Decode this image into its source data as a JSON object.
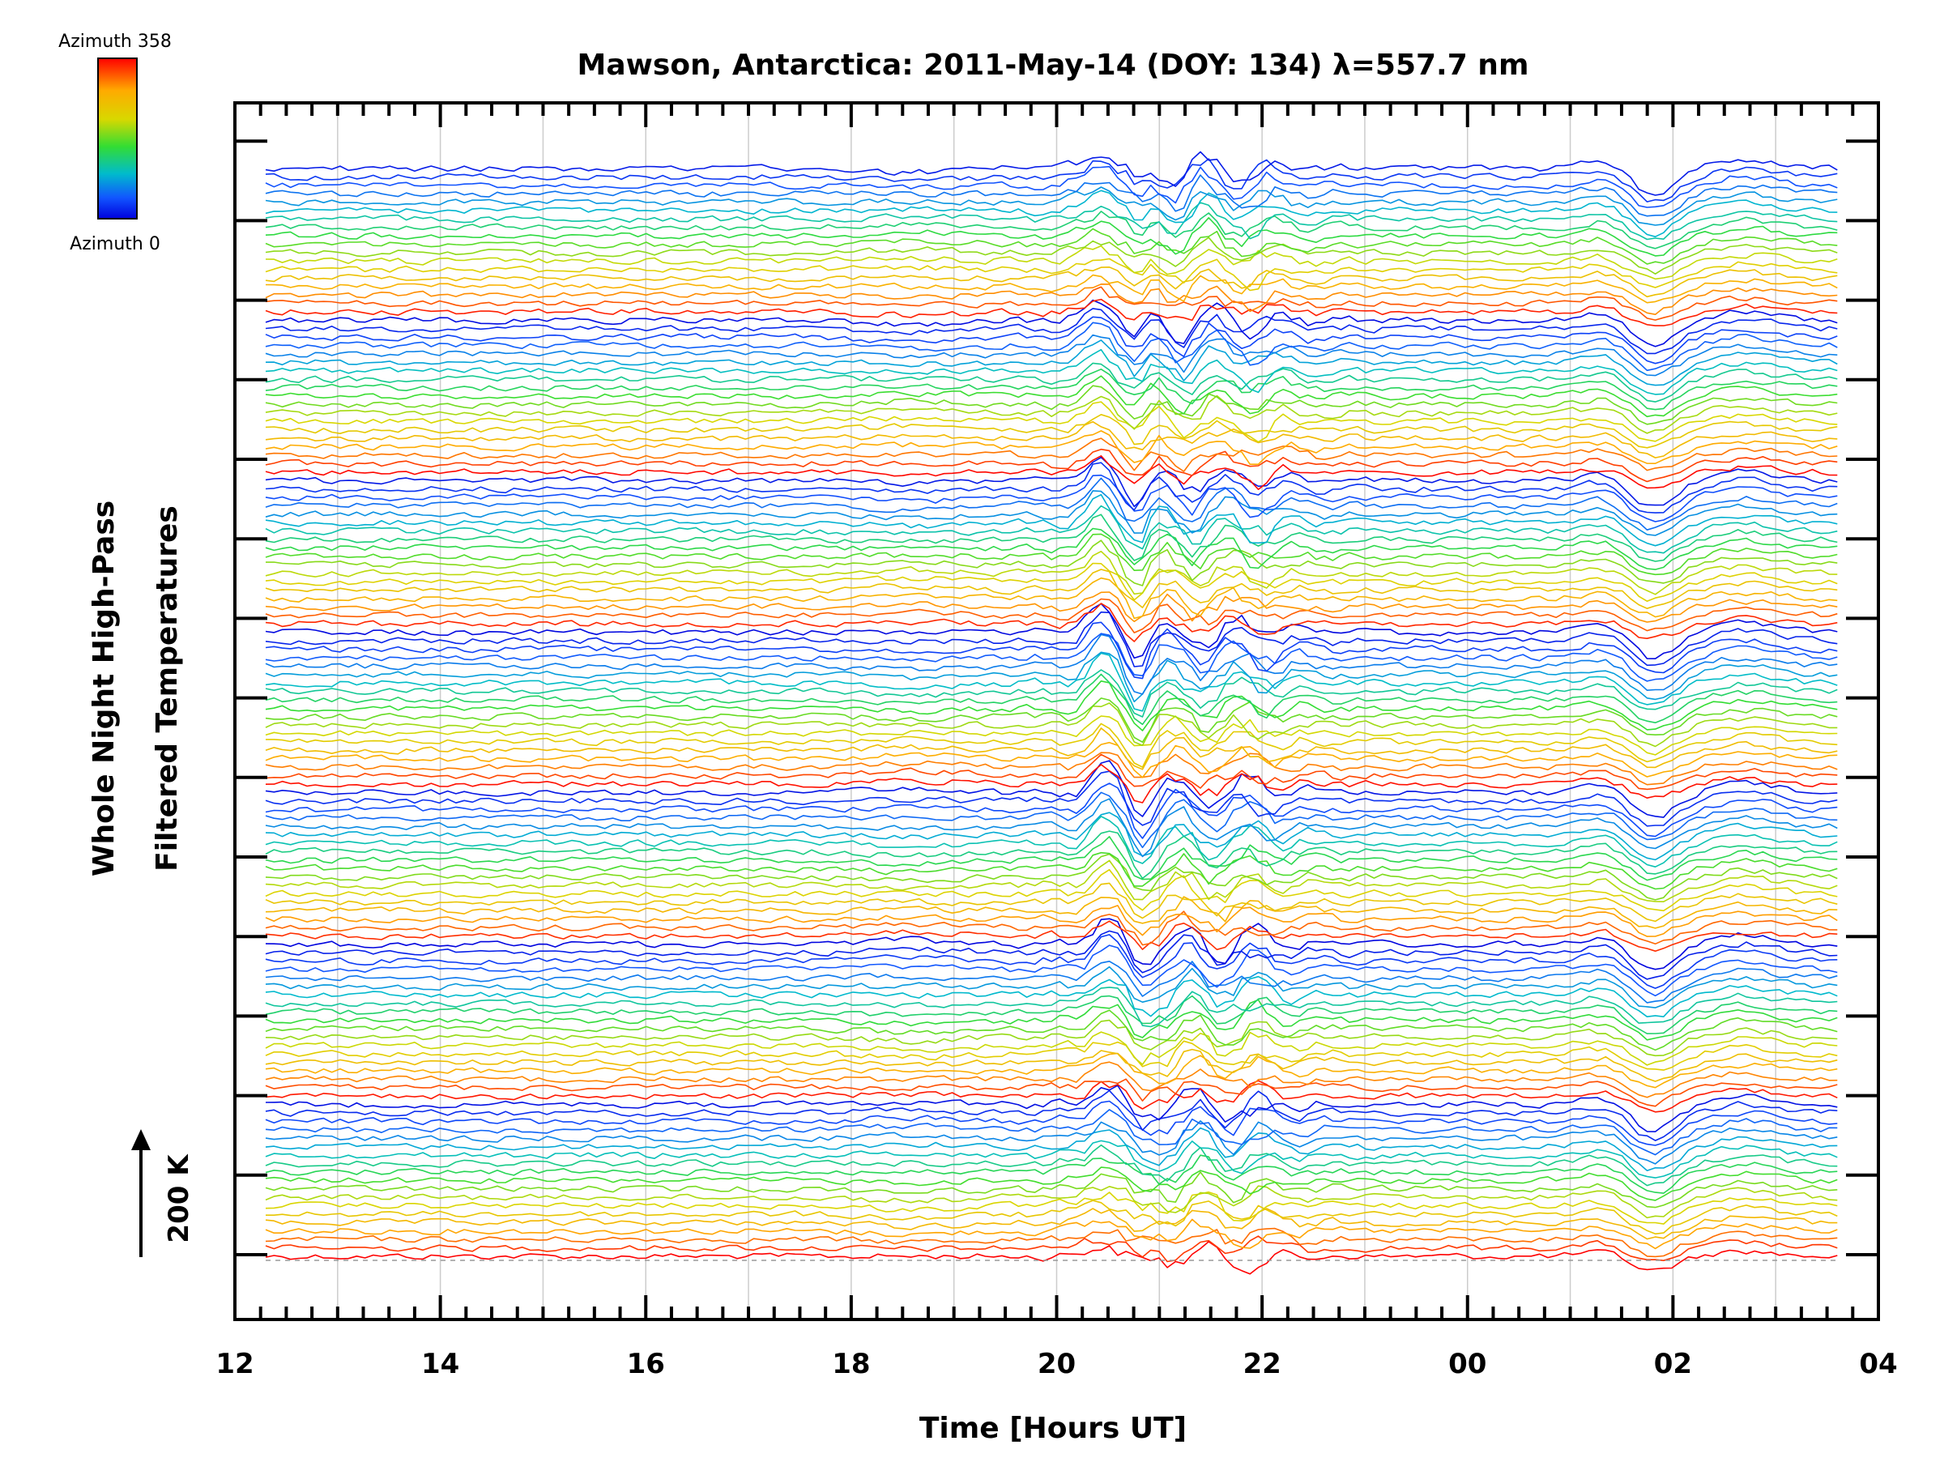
{
  "chart_data": {
    "type": "line",
    "title": "Mawson, Antarctica: 2011-May-14 (DOY: 134) λ=557.7 nm",
    "xlabel": "Time [Hours UT]",
    "ylabel_line1": "Whole Night High-Pass",
    "ylabel_line2": "Filtered Temperatures",
    "x_tick_labels": [
      "12",
      "14",
      "16",
      "18",
      "20",
      "22",
      "00",
      "02",
      "04"
    ],
    "xlim_hours": [
      12,
      28
    ],
    "data_range_hours": [
      12.3,
      27.6
    ],
    "grid": true,
    "colorbar": {
      "top_label": "Azimuth 358",
      "bottom_label": "Azimuth 0",
      "colors": [
        "#ff0000",
        "#ffaa00",
        "#d8d800",
        "#33dd33",
        "#00bbcc",
        "#1155ff",
        "#0000dd"
      ]
    },
    "scale_bar": {
      "label": "200 K"
    },
    "n_traces": 130,
    "rings": 7,
    "colors": {
      "axis": "#000000",
      "grid": "#cccccc",
      "baseline": "#999999"
    }
  }
}
